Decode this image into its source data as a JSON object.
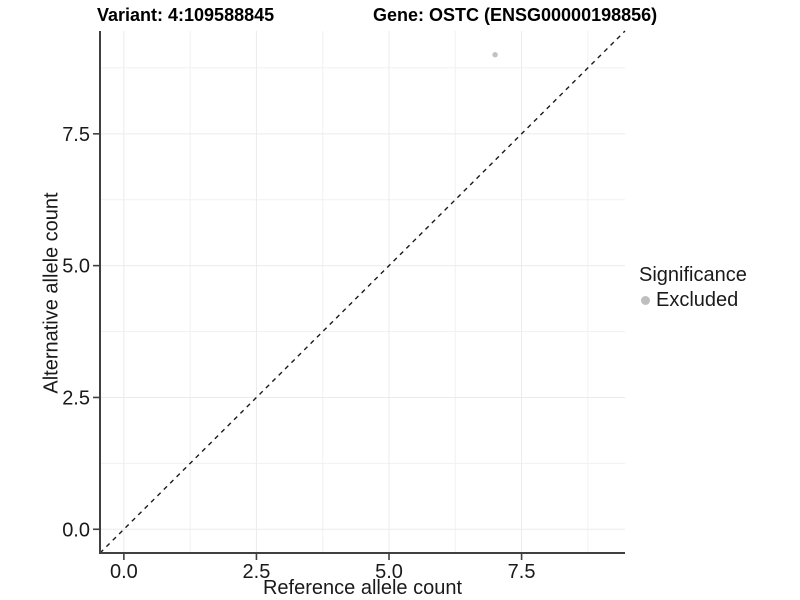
{
  "title": {
    "variant_label": "Variant: 4:109588845",
    "gene_label": "Gene: OSTC (ENSG00000198856)"
  },
  "chart_data": {
    "type": "scatter",
    "title_left": "Variant: 4:109588845",
    "title_right": "Gene: OSTC (ENSG00000198856)",
    "xlabel": "Reference allele count",
    "ylabel": "Alternative allele count",
    "xlim": [
      -0.45,
      9.45
    ],
    "ylim": [
      -0.45,
      9.45
    ],
    "x_ticks": [
      0.0,
      2.5,
      5.0,
      7.5
    ],
    "x_tick_labels": [
      "0.0",
      "2.5",
      "5.0",
      "7.5"
    ],
    "y_ticks": [
      0.0,
      2.5,
      5.0,
      7.5
    ],
    "y_tick_labels": [
      "0.0",
      "2.5",
      "5.0",
      "7.5"
    ],
    "minor_ticks": [
      1.25,
      3.75,
      6.25,
      8.75
    ],
    "grid": true,
    "reference_line": {
      "type": "identity",
      "style": "dashed",
      "intercept": 0,
      "slope": 1
    },
    "series": [
      {
        "name": "Excluded",
        "color": "#c2c2c2",
        "points": [
          {
            "x": 7,
            "y": 9
          }
        ]
      }
    ],
    "legend": {
      "position": "right",
      "title": "Significance",
      "items": [
        {
          "label": "Excluded",
          "color": "#bebebe"
        }
      ]
    }
  },
  "colors": {
    "point": "#c2c2c2",
    "legend_key": "#bebebe",
    "axis_line": "#404040",
    "grid_major": "#ebebeb",
    "grid_minor": "#f1f1f1",
    "reference_line": "#1a1a1a",
    "tick_text": "#1a1a1a",
    "title_text": "#000000",
    "background": "#ffffff"
  }
}
